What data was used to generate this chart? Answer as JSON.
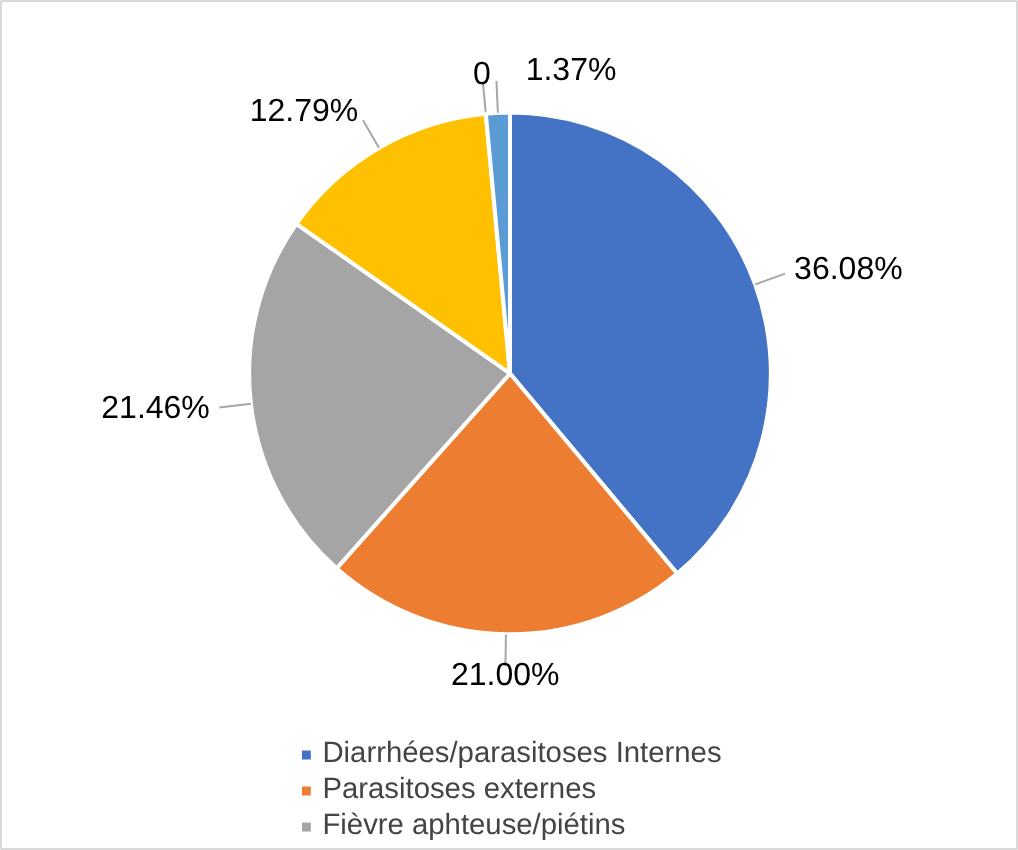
{
  "chart_data": {
    "type": "pie",
    "categories": [
      "Diarrhées/parasitoses Internes",
      "Parasitoses externes",
      "Fièvre aphteuse/piétins",
      null,
      null,
      null
    ],
    "values": [
      36.08,
      21.0,
      21.46,
      12.79,
      0,
      1.37
    ],
    "value_labels": [
      "36.08%",
      "21.00%",
      "21.46%",
      "12.79%",
      "0",
      "1.37%"
    ],
    "colors": [
      "#4472c4",
      "#ed7d31",
      "#a5a5a5",
      "#ffc000",
      "#70ad47",
      "#5b9bd5"
    ],
    "legend": "bottom"
  }
}
